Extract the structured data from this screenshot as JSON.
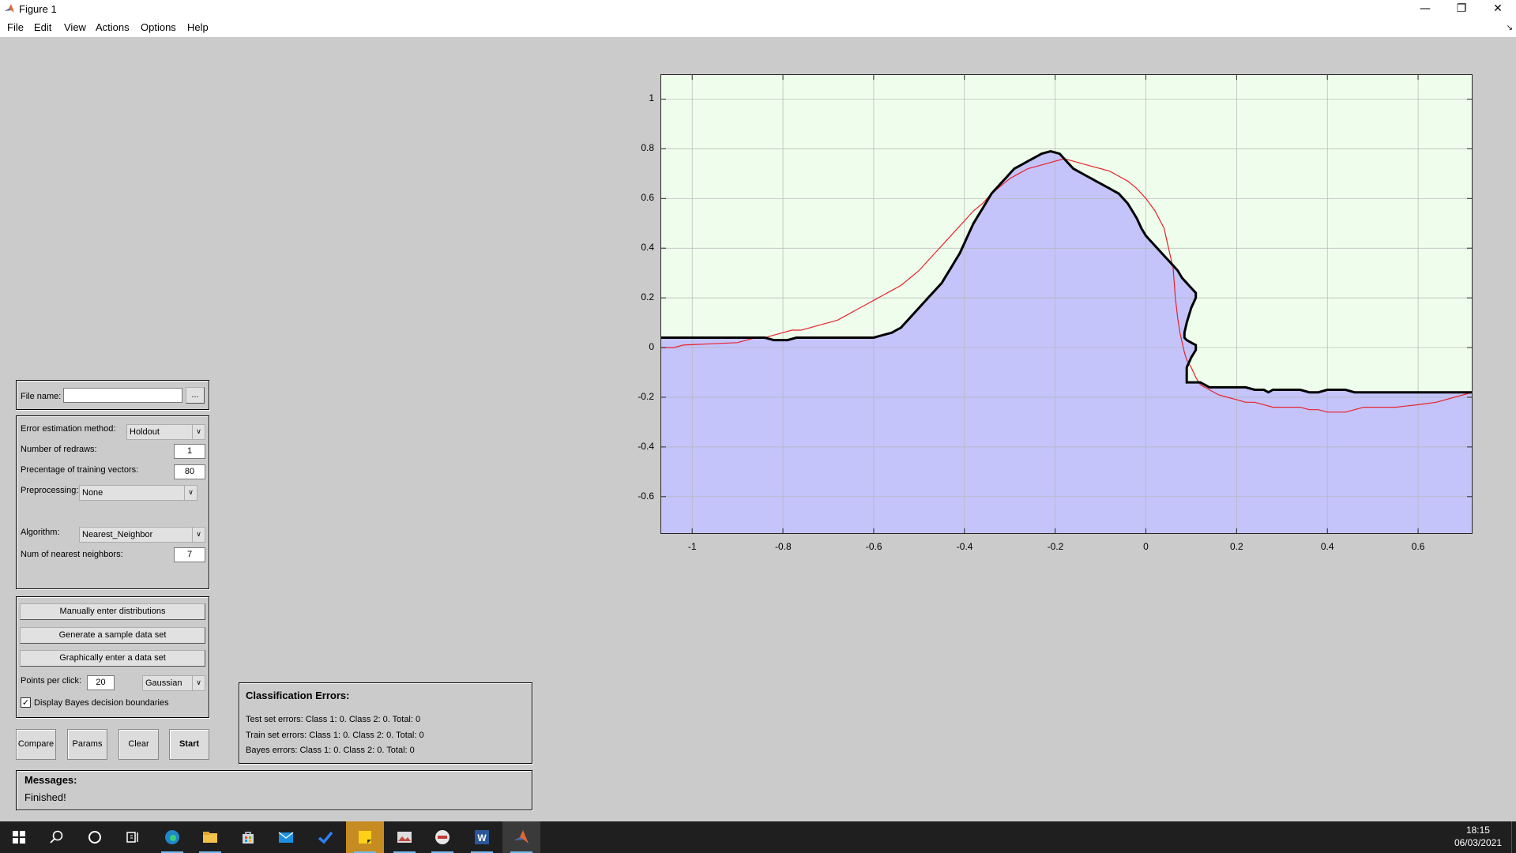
{
  "window": {
    "title": "Figure 1",
    "minimize": "—",
    "maximize": "❐",
    "close": "✕"
  },
  "menu": [
    "File",
    "Edit",
    "View",
    "Actions",
    "Options",
    "Help"
  ],
  "file_panel": {
    "label": "File name:",
    "value": "",
    "browse": "..."
  },
  "settings_panel": {
    "error_method_label": "Error estimation method:",
    "error_method_value": "Holdout",
    "redraws_label": "Number of redraws:",
    "redraws_value": "1",
    "training_label": "Precentage of training vectors:",
    "training_value": "80",
    "preprocessing_label": "Preprocessing:",
    "preprocessing_value": "None",
    "algorithm_label": "Algorithm:",
    "algorithm_value": "Nearest_Neighbor",
    "neighbors_label": "Num of nearest neighbors:",
    "neighbors_value": "7"
  },
  "data_panel": {
    "manual": "Manually enter distributions",
    "generate": "Generate a sample data set",
    "graphical": "Graphically enter a data set",
    "points_label": "Points per click:",
    "points_value": "20",
    "distribution_value": "Gaussian",
    "bayes_label": "Display Bayes decision boundaries",
    "bayes_checked": true
  },
  "actions": {
    "compare": "Compare",
    "params": "Params",
    "clear": "Clear",
    "start": "Start"
  },
  "classification": {
    "title": "Classification Errors:",
    "test": "Test set errors: Class 1: 0. Class 2: 0. Total: 0",
    "train": "Train set errors: Class 1: 0. Class 2: 0. Total: 0",
    "bayes": "Bayes errors: Class 1: 0. Class 2: 0. Total: 0"
  },
  "messages": {
    "title": "Messages:",
    "text": "Finished!"
  },
  "chart_data": {
    "type": "line",
    "xlim": [
      -1.07,
      0.72
    ],
    "ylim": [
      -0.75,
      1.1
    ],
    "xticks": [
      -1,
      -0.8,
      -0.6,
      -0.4,
      -0.2,
      0,
      0.2,
      0.4,
      0.6
    ],
    "yticks": [
      -0.6,
      -0.4,
      -0.2,
      0,
      0.2,
      0.4,
      0.6,
      0.8,
      1
    ],
    "grid": true,
    "colors": {
      "upper_region": "#effeec",
      "lower_region": "#c4c4fb",
      "knn_boundary": "#000000",
      "bayes_boundary": "#e8222a"
    },
    "series": [
      {
        "x": [
          -1.07,
          -0.84,
          -0.82,
          -0.79,
          -0.77,
          -0.6,
          -0.58,
          -0.56,
          -0.55,
          -0.54,
          -0.53,
          -0.52,
          -0.51,
          -0.5,
          -0.49,
          -0.48,
          -0.47,
          -0.46,
          -0.45,
          -0.44,
          -0.43,
          -0.42,
          -0.41,
          -0.4,
          -0.39,
          -0.38,
          -0.37,
          -0.36,
          -0.35,
          -0.34,
          -0.33,
          -0.32,
          -0.31,
          -0.3,
          -0.29,
          -0.28,
          -0.27,
          -0.26,
          -0.25,
          -0.24,
          -0.23,
          -0.22,
          -0.21,
          -0.2,
          -0.19,
          -0.18,
          -0.17,
          -0.16,
          -0.15,
          -0.14,
          -0.13,
          -0.12,
          -0.11,
          -0.1,
          -0.09,
          -0.08,
          -0.07,
          -0.06,
          -0.05,
          -0.04,
          -0.03,
          -0.02,
          -0.01,
          0,
          0.01,
          0.02,
          0.03,
          0.04,
          0.05,
          0.06,
          0.07,
          0.08,
          0.09,
          0.1,
          0.11,
          0.11,
          0.1,
          0.09,
          0.085,
          0.085,
          0.09,
          0.1,
          0.11,
          0.11,
          0.1,
          0.09,
          0.09,
          0.1,
          0.12,
          0.14,
          0.16,
          0.18,
          0.2,
          0.22,
          0.24,
          0.26,
          0.27,
          0.28,
          0.3,
          0.32,
          0.34,
          0.36,
          0.38,
          0.4,
          0.42,
          0.44,
          0.46,
          0.48,
          0.5,
          0.55,
          0.6,
          0.65,
          0.72
        ],
        "y": [
          0.04,
          0.04,
          0.03,
          0.03,
          0.04,
          0.04,
          0.05,
          0.06,
          0.07,
          0.08,
          0.1,
          0.12,
          0.14,
          0.16,
          0.18,
          0.2,
          0.22,
          0.24,
          0.26,
          0.29,
          0.32,
          0.35,
          0.38,
          0.42,
          0.46,
          0.5,
          0.53,
          0.56,
          0.59,
          0.62,
          0.64,
          0.66,
          0.68,
          0.7,
          0.72,
          0.73,
          0.74,
          0.75,
          0.76,
          0.77,
          0.78,
          0.785,
          0.79,
          0.785,
          0.78,
          0.76,
          0.74,
          0.72,
          0.71,
          0.7,
          0.69,
          0.68,
          0.67,
          0.66,
          0.65,
          0.64,
          0.63,
          0.62,
          0.6,
          0.58,
          0.55,
          0.52,
          0.48,
          0.45,
          0.43,
          0.41,
          0.39,
          0.37,
          0.35,
          0.33,
          0.31,
          0.28,
          0.26,
          0.24,
          0.22,
          0.2,
          0.16,
          0.1,
          0.06,
          0.04,
          0.03,
          0.02,
          0.01,
          -0.01,
          -0.04,
          -0.08,
          -0.14,
          -0.14,
          -0.14,
          -0.16,
          -0.16,
          -0.16,
          -0.16,
          -0.16,
          -0.17,
          -0.17,
          -0.18,
          -0.17,
          -0.17,
          -0.17,
          -0.17,
          -0.18,
          -0.18,
          -0.17,
          -0.17,
          -0.17,
          -0.18,
          -0.18,
          -0.18,
          -0.18,
          -0.18,
          -0.18,
          -0.18
        ]
      },
      {
        "x": [
          -1.07,
          -1.04,
          -1.02,
          -0.9,
          -0.88,
          -0.86,
          -0.84,
          -0.82,
          -0.8,
          -0.78,
          -0.76,
          -0.74,
          -0.72,
          -0.7,
          -0.68,
          -0.66,
          -0.64,
          -0.62,
          -0.6,
          -0.58,
          -0.56,
          -0.54,
          -0.52,
          -0.5,
          -0.48,
          -0.46,
          -0.44,
          -0.42,
          -0.4,
          -0.38,
          -0.36,
          -0.34,
          -0.32,
          -0.3,
          -0.28,
          -0.26,
          -0.24,
          -0.22,
          -0.2,
          -0.18,
          -0.16,
          -0.14,
          -0.12,
          -0.1,
          -0.08,
          -0.06,
          -0.04,
          -0.02,
          0,
          0.02,
          0.04,
          0.05,
          0.06,
          0.065,
          0.07,
          0.075,
          0.08,
          0.085,
          0.09,
          0.1,
          0.11,
          0.12,
          0.14,
          0.16,
          0.18,
          0.2,
          0.22,
          0.24,
          0.26,
          0.28,
          0.3,
          0.32,
          0.34,
          0.36,
          0.38,
          0.4,
          0.42,
          0.44,
          0.46,
          0.48,
          0.5,
          0.55,
          0.6,
          0.64,
          0.68,
          0.72
        ],
        "y": [
          0.0,
          0.0,
          0.01,
          0.02,
          0.03,
          0.04,
          0.04,
          0.05,
          0.06,
          0.07,
          0.07,
          0.08,
          0.09,
          0.1,
          0.11,
          0.13,
          0.15,
          0.17,
          0.19,
          0.21,
          0.23,
          0.25,
          0.28,
          0.31,
          0.35,
          0.39,
          0.43,
          0.47,
          0.51,
          0.55,
          0.58,
          0.62,
          0.65,
          0.68,
          0.7,
          0.72,
          0.73,
          0.74,
          0.75,
          0.76,
          0.75,
          0.74,
          0.73,
          0.72,
          0.71,
          0.69,
          0.67,
          0.64,
          0.6,
          0.55,
          0.48,
          0.4,
          0.32,
          0.2,
          0.12,
          0.06,
          0.02,
          -0.02,
          -0.05,
          -0.08,
          -0.12,
          -0.15,
          -0.17,
          -0.19,
          -0.2,
          -0.21,
          -0.22,
          -0.22,
          -0.23,
          -0.24,
          -0.24,
          -0.24,
          -0.24,
          -0.25,
          -0.25,
          -0.26,
          -0.26,
          -0.26,
          -0.25,
          -0.24,
          -0.24,
          -0.24,
          -0.23,
          -0.22,
          -0.2,
          -0.18
        ]
      }
    ]
  }
}
